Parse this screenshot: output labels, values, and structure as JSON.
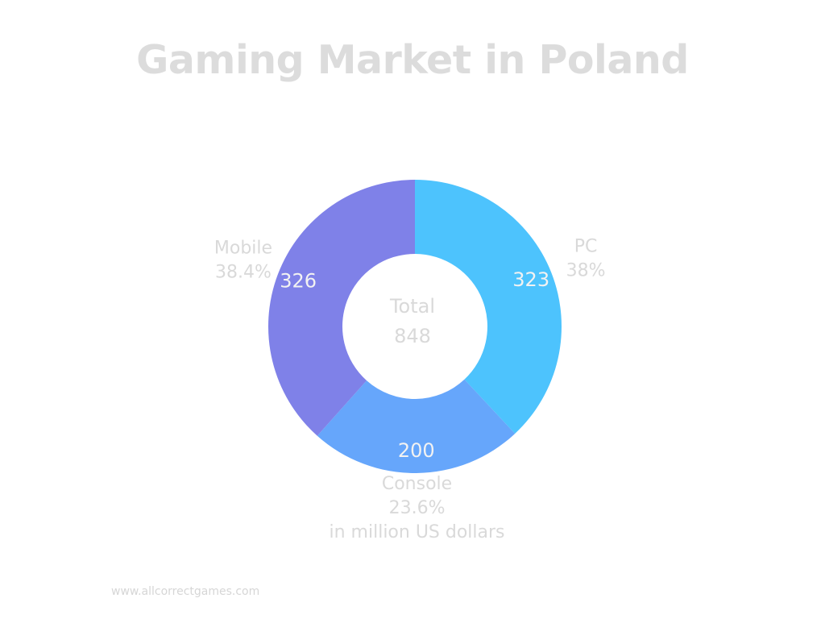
{
  "title": "Gaming Market in Poland",
  "footer": "www.allcorrectgames.com",
  "chart_data": {
    "type": "pie",
    "variant": "donut",
    "series": [
      {
        "name": "PC",
        "value": 323,
        "percent_label": "38%",
        "color": "#4dc3fd"
      },
      {
        "name": "Console",
        "value": 200,
        "percent_label": "23.6%",
        "color": "#66a6fb"
      },
      {
        "name": "Mobile",
        "value": 326,
        "percent_label": "38.4%",
        "color": "#7f81e8"
      }
    ],
    "center_label": "Total",
    "center_value": "848",
    "unit_note": "in million US dollars",
    "label_color": "#d9d9d9",
    "value_label_color": "#f2f2f2"
  }
}
